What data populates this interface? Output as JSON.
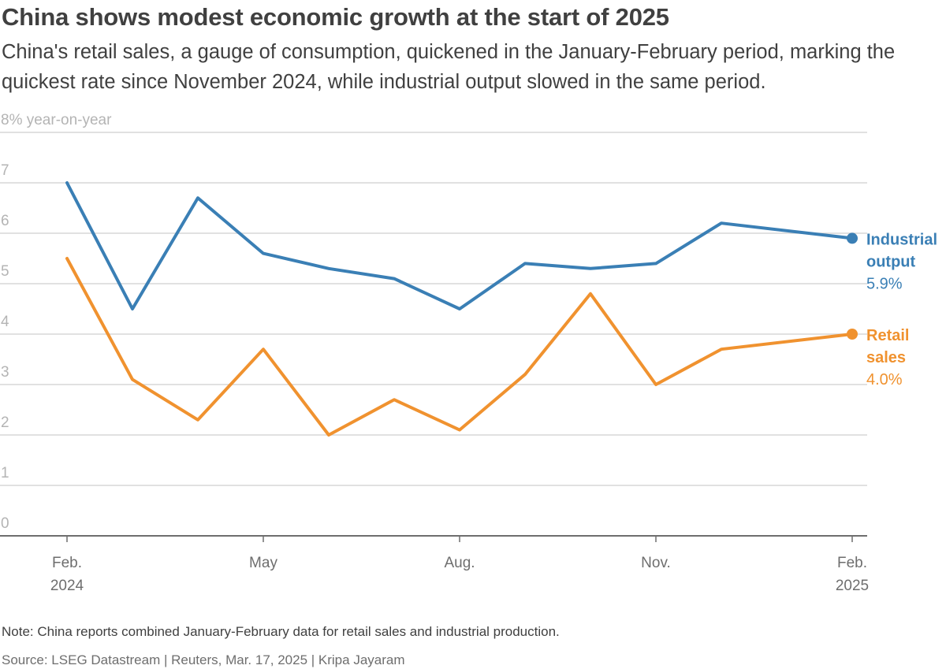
{
  "header": {
    "title": "China shows modest economic growth at the start of 2025",
    "subtitle": "China's retail sales, a gauge of consumption, quickened in the January-February period, marking the quickest rate since November 2024, while industrial output slowed in the same period."
  },
  "footer": {
    "note": "Note: China reports combined January-February data for retail sales and industrial production.",
    "source": "Source: LSEG Datastream | Reuters, Mar. 17, 2025 | Kripa Jayaram"
  },
  "chart_data": {
    "type": "line",
    "ylabel": "8% year-on-year",
    "ylim": [
      0,
      8
    ],
    "yticks": [
      0,
      1,
      2,
      3,
      4,
      5,
      6,
      7
    ],
    "x": [
      "2024-02",
      "2024-03",
      "2024-04",
      "2024-05",
      "2024-06",
      "2024-07",
      "2024-08",
      "2024-09",
      "2024-10",
      "2024-11",
      "2024-12",
      "2025-02"
    ],
    "xtick_labels": [
      {
        "x": "2024-02",
        "lines": [
          "Feb.",
          "2024"
        ]
      },
      {
        "x": "2024-05",
        "lines": [
          "May"
        ]
      },
      {
        "x": "2024-08",
        "lines": [
          "Aug."
        ]
      },
      {
        "x": "2024-11",
        "lines": [
          "Nov."
        ]
      },
      {
        "x": "2025-02",
        "lines": [
          "Feb.",
          "2025"
        ]
      }
    ],
    "grid": true,
    "series": [
      {
        "name": "Industrial output",
        "label_lines": [
          "Industrial",
          "output"
        ],
        "end_label": "5.9%",
        "color": "#3a7fb5",
        "values": [
          7.0,
          4.5,
          6.7,
          5.6,
          5.3,
          5.1,
          4.5,
          5.4,
          5.3,
          5.4,
          6.2,
          5.9
        ]
      },
      {
        "name": "Retail sales",
        "label_lines": [
          "Retail",
          "sales"
        ],
        "end_label": "4.0%",
        "color": "#f0922f",
        "values": [
          5.5,
          3.1,
          2.3,
          3.7,
          2.0,
          2.7,
          2.1,
          3.2,
          4.8,
          3.0,
          3.7,
          4.0
        ]
      }
    ]
  }
}
